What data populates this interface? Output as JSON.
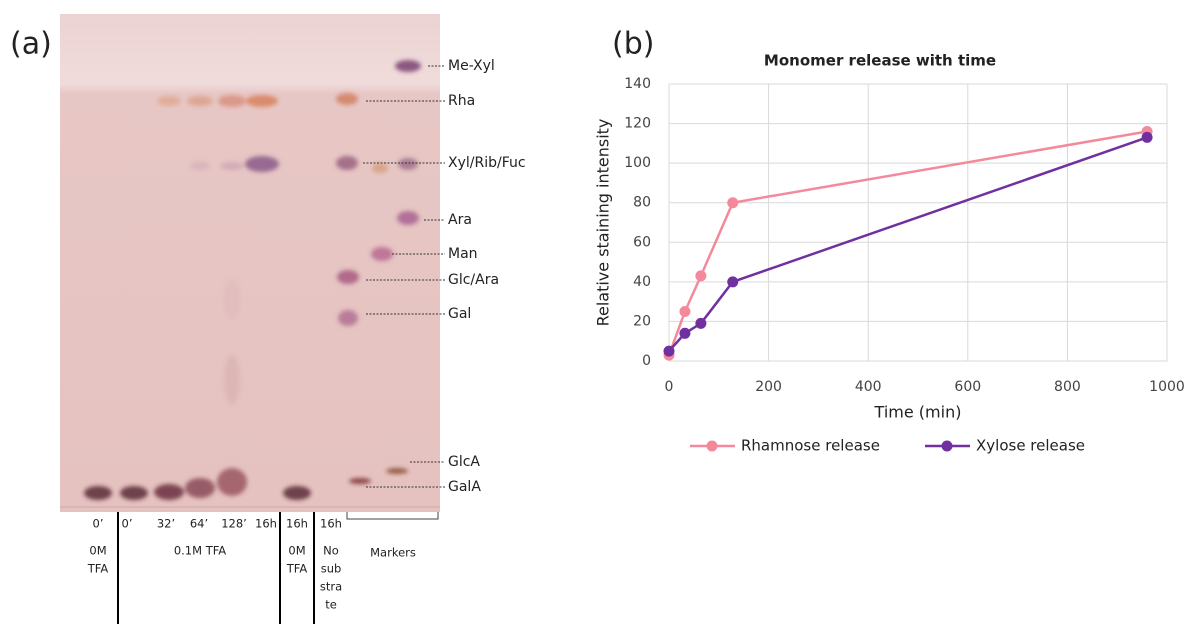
{
  "panel_a": {
    "label": "(a)",
    "bands": [
      "Me-Xyl",
      "Rha",
      "Xyl/Rib/Fuc",
      "Ara",
      "Man",
      "Glc/Ara",
      "Gal",
      "GlcA",
      "GalA"
    ],
    "lanes": [
      "0’",
      "0’",
      "32’",
      "64’",
      "128’",
      "16h",
      "16h",
      "16h"
    ],
    "groups": [
      [
        "0M",
        "TFA"
      ],
      [
        "0.1M TFA"
      ],
      [
        "0M",
        "TFA"
      ],
      [
        "No",
        "sub",
        "stra",
        "te"
      ]
    ],
    "markers": "Markers"
  },
  "chart_data": {
    "type": "line",
    "panel_label": "(b)",
    "title": "Monomer release with time",
    "x_label": "Time (min)",
    "y_label": "Relative staining intensity",
    "x": [
      0,
      32,
      64,
      128,
      960
    ],
    "series": [
      {
        "name": "Rhamnose release",
        "color": "#f4899b",
        "values": [
          3,
          25,
          43,
          80,
          116
        ]
      },
      {
        "name": "Xylose release",
        "color": "#7030a0",
        "values": [
          5,
          14,
          19,
          40,
          113
        ]
      }
    ],
    "xlim": [
      0,
      1000
    ],
    "xticks": [
      0,
      200,
      400,
      600,
      800,
      1000
    ],
    "ylim": [
      0,
      140
    ],
    "yticks": [
      0,
      20,
      40,
      60,
      80,
      100,
      120,
      140
    ],
    "grid": true,
    "legend": "bottom"
  }
}
